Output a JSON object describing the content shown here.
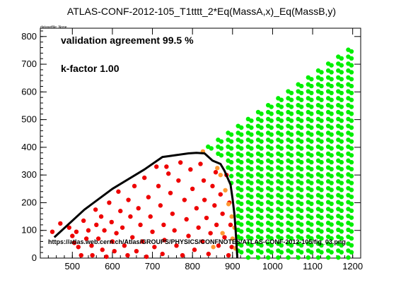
{
  "title": "ATLAS-CONF-2012-105_T1tttt_2*Eq(MassA,x)_Eq(MassB,y)",
  "dataset_label": "datasetfile: None",
  "annotations": {
    "agreement": "validation agreement 99.5 %",
    "kfactor": "k-factor 1.00",
    "url": "https://atlas.web.cern.ch/Atlas/GROUPS/PHYSICS/CONFNOTES/ATLAS-CONF-2012-105/fig_03.png"
  },
  "colors": {
    "excluded": "#ee0000",
    "allowed": "#00ee00",
    "disagree": "#ff9933",
    "line": "#000000"
  },
  "chart_data": {
    "type": "scatter",
    "title": "ATLAS-CONF-2012-105_T1tttt_2*Eq(MassA,x)_Eq(MassB,y)",
    "xlabel": "",
    "ylabel": "",
    "xlim": [
      420,
      1220
    ],
    "ylim": [
      0,
      830
    ],
    "x_ticks": [
      500,
      600,
      700,
      800,
      900,
      1000,
      1100,
      1200
    ],
    "y_ticks": [
      0,
      100,
      200,
      300,
      400,
      500,
      600,
      700,
      800
    ],
    "grid": false,
    "legend": "none",
    "exclusion_curve": {
      "x": [
        455,
        530,
        600,
        680,
        725,
        740,
        760,
        790,
        810,
        830,
        850,
        870,
        880,
        895,
        900,
        905,
        908,
        912
      ],
      "y": [
        75,
        175,
        250,
        320,
        365,
        368,
        372,
        378,
        380,
        378,
        352,
        340,
        315,
        265,
        215,
        155,
        95,
        0
      ]
    },
    "series": [
      {
        "name": "excluded",
        "color": "#ee0000",
        "points": [
          [
            450,
            95
          ],
          [
            470,
            125
          ],
          [
            492,
            110
          ],
          [
            500,
            80
          ],
          [
            505,
            55
          ],
          [
            510,
            95
          ],
          [
            515,
            40
          ],
          [
            522,
            10
          ],
          [
            528,
            135
          ],
          [
            535,
            70
          ],
          [
            540,
            100
          ],
          [
            548,
            45
          ],
          [
            550,
            10
          ],
          [
            558,
            175
          ],
          [
            560,
            120
          ],
          [
            565,
            70
          ],
          [
            572,
            150
          ],
          [
            575,
            30
          ],
          [
            580,
            100
          ],
          [
            585,
            5
          ],
          [
            592,
            200
          ],
          [
            598,
            130
          ],
          [
            600,
            60
          ],
          [
            605,
            25
          ],
          [
            610,
            90
          ],
          [
            615,
            240
          ],
          [
            620,
            170
          ],
          [
            625,
            110
          ],
          [
            630,
            45
          ],
          [
            638,
            10
          ],
          [
            640,
            210
          ],
          [
            645,
            150
          ],
          [
            650,
            75
          ],
          [
            655,
            260
          ],
          [
            660,
            25
          ],
          [
            665,
            180
          ],
          [
            670,
            120
          ],
          [
            675,
            60
          ],
          [
            680,
            290
          ],
          [
            685,
            5
          ],
          [
            690,
            220
          ],
          [
            695,
            150
          ],
          [
            700,
            95
          ],
          [
            705,
            40
          ],
          [
            710,
            330
          ],
          [
            715,
            260
          ],
          [
            720,
            190
          ],
          [
            725,
            15
          ],
          [
            728,
            120
          ],
          [
            730,
            65
          ],
          [
            735,
            330
          ],
          [
            740,
            305
          ],
          [
            745,
            235
          ],
          [
            750,
            160
          ],
          [
            755,
            100
          ],
          [
            760,
            45
          ],
          [
            765,
            280
          ],
          [
            770,
            345
          ],
          [
            775,
            10
          ],
          [
            780,
            210
          ],
          [
            785,
            140
          ],
          [
            790,
            80
          ],
          [
            795,
            320
          ],
          [
            800,
            250
          ],
          [
            805,
            30
          ],
          [
            810,
            180
          ],
          [
            815,
            110
          ],
          [
            820,
            340
          ],
          [
            825,
            60
          ],
          [
            828,
            280
          ],
          [
            830,
            210
          ],
          [
            835,
            145
          ],
          [
            840,
            15
          ],
          [
            845,
            90
          ],
          [
            850,
            260
          ],
          [
            855,
            190
          ],
          [
            858,
            310
          ],
          [
            860,
            120
          ],
          [
            865,
            45
          ],
          [
            870,
            230
          ],
          [
            875,
            160
          ],
          [
            880,
            75
          ],
          [
            885,
            300
          ],
          [
            890,
            10
          ],
          [
            892,
            200
          ],
          [
            895,
            120
          ],
          [
            898,
            40
          ]
        ]
      },
      {
        "name": "disagree",
        "color": "#ff9933",
        "points": [
          [
            826,
            385
          ],
          [
            862,
            325
          ],
          [
            870,
            300
          ],
          [
            882,
            245
          ],
          [
            890,
            195
          ],
          [
            898,
            150
          ],
          [
            905,
            110
          ],
          [
            900,
            70
          ],
          [
            907,
            35
          ],
          [
            852,
            40
          ],
          [
            875,
            90
          ]
        ]
      },
      {
        "name": "allowed",
        "color": "#00ee00"
      }
    ]
  }
}
